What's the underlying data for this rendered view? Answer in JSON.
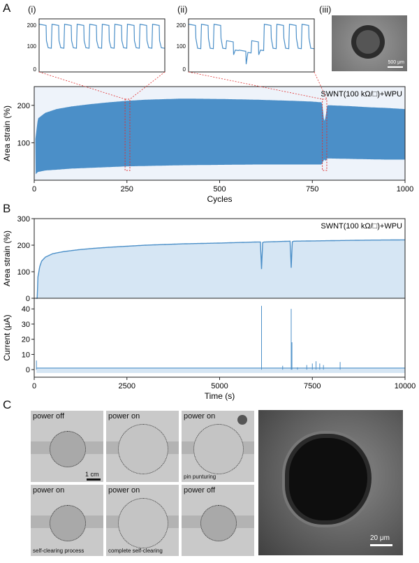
{
  "panel_labels": {
    "a": "A",
    "b": "B",
    "c": "C"
  },
  "insets": {
    "labels": [
      "(i)",
      "(ii)",
      "(iii)"
    ],
    "ticks": [
      "0",
      "100",
      "200"
    ],
    "scale_bar": "500 μm"
  },
  "colors": {
    "series": "#4b8fc8",
    "fill": "#d6e6f4",
    "highlight": "#e03030"
  },
  "chart_data": [
    {
      "type": "area",
      "panel": "A",
      "annotation": "SWNT(100 kΩ/□)+WPU",
      "xlabel": "Cycles",
      "ylabel": "Area strain (%)",
      "xlim": [
        0,
        1000
      ],
      "ylim": [
        0,
        250
      ],
      "xticks": [
        "0",
        "250",
        "500",
        "750",
        "1000"
      ],
      "yticks": [
        "100",
        "200"
      ],
      "highlight_windows": [
        [
          245,
          258
        ],
        [
          777,
          789
        ]
      ],
      "series": [
        {
          "role": "upper envelope",
          "x": [
            3,
            10,
            30,
            60,
            100,
            150,
            200,
            250,
            300,
            400,
            500,
            600,
            700,
            750,
            775,
            778,
            782,
            786,
            790,
            800,
            850,
            900,
            950,
            1000
          ],
          "y": [
            110,
            165,
            180,
            190,
            197,
            203,
            208,
            212,
            215,
            218,
            217,
            215,
            212,
            210,
            208,
            195,
            155,
            170,
            200,
            200,
            198,
            195,
            193,
            190
          ]
        },
        {
          "role": "lower envelope",
          "x": [
            3,
            10,
            30,
            60,
            100,
            150,
            200,
            250,
            300,
            400,
            500,
            600,
            700,
            750,
            775,
            778,
            782,
            786,
            790,
            800,
            850,
            900,
            950,
            1000
          ],
          "y": [
            15,
            22,
            26,
            28,
            31,
            33,
            35,
            37,
            38,
            40,
            41,
            42,
            42,
            42,
            42,
            48,
            55,
            52,
            58,
            58,
            57,
            56,
            55,
            55
          ]
        }
      ]
    },
    {
      "type": "area",
      "panel": "B-top",
      "annotation": "SWNT(100 kΩ/□)+WPU",
      "ylabel": "Area strain (%)",
      "xlim": [
        0,
        10000
      ],
      "ylim": [
        0,
        300
      ],
      "yticks": [
        "0",
        "100",
        "200",
        "300"
      ],
      "series": [
        {
          "role": "upper envelope",
          "x": [
            50,
            80,
            100,
            150,
            200,
            300,
            500,
            800,
            1200,
            1600,
            2000,
            3000,
            4000,
            5000,
            6000,
            6100,
            6130,
            6160,
            6200,
            6900,
            6930,
            6960,
            7000,
            8000,
            9000,
            10000
          ],
          "y": [
            0,
            0,
            80,
            120,
            140,
            155,
            168,
            176,
            183,
            188,
            192,
            200,
            205,
            208,
            212,
            212,
            110,
            210,
            212,
            215,
            115,
            213,
            215,
            217,
            219,
            220
          ]
        }
      ]
    },
    {
      "type": "line",
      "panel": "B-bottom",
      "xlabel": "Time (s)",
      "ylabel": "Current (μA)",
      "xlim": [
        0,
        10000
      ],
      "ylim": [
        -5,
        47
      ],
      "xticks": [
        "0",
        "2500",
        "5000",
        "7500",
        "10000"
      ],
      "yticks": [
        "0",
        "10",
        "20",
        "30",
        "40"
      ],
      "baseline": 1,
      "spikes": {
        "x": [
          60,
          6130,
          6700,
          6930,
          6950,
          7100,
          7350,
          7500,
          7600,
          7700,
          7800,
          8250
        ],
        "y": [
          6,
          42,
          2.5,
          40,
          18,
          1.5,
          3,
          4,
          5.5,
          4,
          3,
          5
        ]
      }
    }
  ],
  "photos": {
    "captions": [
      "power off",
      "power on",
      "power on",
      "power on",
      "power on",
      "power off"
    ],
    "notes": [
      "1 cm",
      "pin punturing",
      "self-clearing process",
      "complete self-clearing"
    ],
    "sem_scale": "20 μm"
  }
}
